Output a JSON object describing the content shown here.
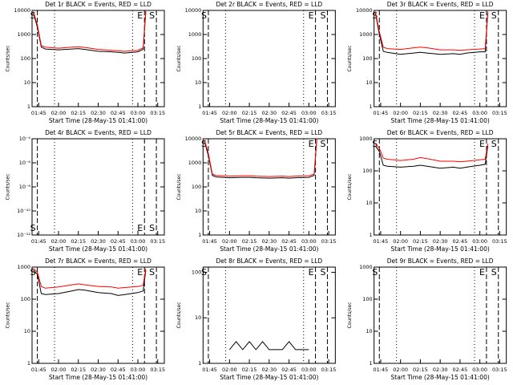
{
  "chart_data": [
    {
      "type": "line",
      "title": "Det 1r BLACK = Events, RED = LLD",
      "ylabel": "Counts/sec",
      "xlabel": "Start Time (28-May-15 01:41:00)",
      "log_y": true,
      "xlim": [
        "01:40",
        "03:20"
      ],
      "xticks": [
        "01:45",
        "02:00",
        "02:15",
        "02:30",
        "02:45",
        "03:00",
        "03:15"
      ],
      "ylim": [
        1,
        10000
      ],
      "yticks": [
        1,
        10,
        100,
        1000,
        10000
      ],
      "x": [
        "01:41",
        "01:44",
        "01:47",
        "01:50",
        "02:00",
        "02:10",
        "02:15",
        "02:20",
        "02:30",
        "02:40",
        "02:45",
        "02:50",
        "03:00",
        "03:04",
        "03:06"
      ],
      "series": [
        {
          "color": "#000000",
          "values": [
            8000,
            2000,
            300,
            250,
            230,
            250,
            260,
            240,
            200,
            190,
            180,
            170,
            190,
            240,
            9000
          ]
        },
        {
          "color": "#ff0000",
          "values": [
            9000,
            2500,
            350,
            300,
            270,
            300,
            310,
            290,
            240,
            220,
            210,
            200,
            220,
            280,
            10000
          ]
        }
      ],
      "markers": [
        {
          "x": "01:44",
          "style": "dashed",
          "label": "S"
        },
        {
          "x": "01:57",
          "style": "dotted"
        },
        {
          "x": "02:56",
          "style": "dotted"
        },
        {
          "x": "03:05",
          "style": "dashed",
          "label": "E"
        },
        {
          "x": "03:14",
          "style": "dashed",
          "label": "S"
        }
      ]
    },
    {
      "type": "line",
      "title": "Det 2r BLACK = Events, RED = LLD",
      "ylabel": "Counts/sec",
      "xlabel": "Start Time (28-May-15 01:41:00)",
      "log_y": true,
      "xlim": [
        "01:40",
        "03:20"
      ],
      "xticks": [
        "01:45",
        "02:00",
        "02:15",
        "02:30",
        "02:45",
        "03:00",
        "03:15"
      ],
      "ylim": [
        1,
        10000
      ],
      "yticks": [
        1,
        10,
        100,
        1000,
        10000
      ],
      "x": [],
      "series": [],
      "markers": [
        {
          "x": "01:44",
          "style": "dashed",
          "label": "S"
        },
        {
          "x": "01:57",
          "style": "dotted"
        },
        {
          "x": "02:56",
          "style": "dotted"
        },
        {
          "x": "03:05",
          "style": "dashed",
          "label": "E"
        },
        {
          "x": "03:14",
          "style": "dashed",
          "label": "S"
        }
      ]
    },
    {
      "type": "line",
      "title": "Det 3r BLACK = Events, RED = LLD",
      "ylabel": "Counts/sec",
      "xlabel": "Start Time (28-May-15 01:41:00)",
      "log_y": true,
      "xlim": [
        "01:40",
        "03:20"
      ],
      "xticks": [
        "01:45",
        "02:00",
        "02:15",
        "02:30",
        "02:45",
        "03:00",
        "03:15"
      ],
      "ylim": [
        1,
        10000
      ],
      "yticks": [
        1,
        10,
        100,
        1000,
        10000
      ],
      "x": [
        "01:41",
        "01:44",
        "01:47",
        "01:50",
        "02:00",
        "02:10",
        "02:15",
        "02:20",
        "02:30",
        "02:40",
        "02:45",
        "02:50",
        "03:00",
        "03:04",
        "03:06"
      ],
      "series": [
        {
          "color": "#000000",
          "values": [
            8000,
            1000,
            200,
            180,
            150,
            170,
            180,
            170,
            150,
            160,
            150,
            170,
            190,
            190,
            8000
          ]
        },
        {
          "color": "#ff0000",
          "values": [
            9000,
            1300,
            300,
            260,
            240,
            280,
            300,
            280,
            230,
            230,
            220,
            230,
            250,
            260,
            9000
          ]
        }
      ],
      "markers": [
        {
          "x": "01:44",
          "style": "dashed",
          "label": "S"
        },
        {
          "x": "01:57",
          "style": "dotted"
        },
        {
          "x": "02:56",
          "style": "dotted"
        },
        {
          "x": "03:05",
          "style": "dashed",
          "label": "E"
        },
        {
          "x": "03:14",
          "style": "dashed",
          "label": "S"
        }
      ]
    },
    {
      "type": "line",
      "title": "Det 4r BLACK = Events, RED = LLD",
      "ylabel": "Counts/sec",
      "xlabel": "Start Time (28-May-15 01:41:00)",
      "log_y": true,
      "xlim": [
        "01:40",
        "03:20"
      ],
      "xticks": [
        "01:45",
        "02:00",
        "02:15",
        "02:30",
        "02:45",
        "03:00",
        "03:15"
      ],
      "ylim": [
        1e-12,
        0.0001
      ],
      "yticks": [
        {
          "value": 1e-12,
          "label": "10⁻¹²"
        },
        {
          "value": 1e-10,
          "label": "10⁻¹⁰"
        },
        {
          "value": 1e-08,
          "label": "10⁻⁸"
        },
        {
          "value": 1e-06,
          "label": "10⁻⁶"
        },
        {
          "value": 0.0001,
          "label": "10⁻⁴"
        }
      ],
      "x": [],
      "series": [],
      "marker_labels": "bottom",
      "markers": [
        {
          "x": "01:44",
          "style": "dashed",
          "label": "S"
        },
        {
          "x": "01:57",
          "style": "dotted"
        },
        {
          "x": "02:56",
          "style": "dotted"
        },
        {
          "x": "03:05",
          "style": "dashed",
          "label": "E"
        },
        {
          "x": "03:14",
          "style": "dashed",
          "label": "S"
        }
      ]
    },
    {
      "type": "line",
      "title": "Det 5r BLACK = Events, RED = LLD",
      "ylabel": "Counts/sec",
      "xlabel": "Start Time (28-May-15 01:41:00)",
      "log_y": true,
      "xlim": [
        "01:40",
        "03:20"
      ],
      "xticks": [
        "01:45",
        "02:00",
        "02:15",
        "02:30",
        "02:45",
        "03:00",
        "03:15"
      ],
      "ylim": [
        1,
        10000
      ],
      "yticks": [
        1,
        10,
        100,
        1000,
        10000
      ],
      "x": [
        "01:41",
        "01:44",
        "01:47",
        "01:50",
        "02:00",
        "02:10",
        "02:15",
        "02:20",
        "02:30",
        "02:40",
        "02:45",
        "02:50",
        "03:00",
        "03:04",
        "03:06"
      ],
      "series": [
        {
          "color": "#000000",
          "values": [
            8000,
            2000,
            300,
            260,
            240,
            250,
            250,
            240,
            230,
            240,
            230,
            240,
            250,
            300,
            9000
          ]
        },
        {
          "color": "#ff0000",
          "values": [
            9000,
            2500,
            340,
            300,
            280,
            290,
            290,
            280,
            270,
            280,
            270,
            280,
            290,
            340,
            10000
          ]
        }
      ],
      "markers": [
        {
          "x": "01:44",
          "style": "dashed",
          "label": "S"
        },
        {
          "x": "01:57",
          "style": "dotted"
        },
        {
          "x": "02:56",
          "style": "dotted"
        },
        {
          "x": "03:05",
          "style": "dashed",
          "label": "E"
        },
        {
          "x": "03:14",
          "style": "dashed",
          "label": "S"
        }
      ]
    },
    {
      "type": "line",
      "title": "Det 6r BLACK = Events, RED = LLD",
      "ylabel": "Counts/sec",
      "xlabel": "Start Time (28-May-15 01:41:00)",
      "log_y": true,
      "xlim": [
        "01:40",
        "03:20"
      ],
      "xticks": [
        "01:45",
        "02:00",
        "02:15",
        "02:30",
        "02:45",
        "03:00",
        "03:15"
      ],
      "ylim": [
        1,
        1000
      ],
      "yticks": [
        1,
        10,
        100,
        1000
      ],
      "x": [
        "01:41",
        "01:44",
        "01:47",
        "01:50",
        "02:00",
        "02:10",
        "02:15",
        "02:20",
        "02:30",
        "02:40",
        "02:45",
        "02:50",
        "03:00",
        "03:04",
        "03:06"
      ],
      "series": [
        {
          "color": "#000000",
          "values": [
            600,
            400,
            150,
            140,
            130,
            140,
            150,
            140,
            120,
            130,
            120,
            130,
            150,
            160,
            600
          ]
        },
        {
          "color": "#ff0000",
          "values": [
            700,
            500,
            250,
            230,
            210,
            230,
            260,
            240,
            200,
            200,
            190,
            200,
            220,
            230,
            700
          ]
        }
      ],
      "markers": [
        {
          "x": "01:44",
          "style": "dashed",
          "label": "S"
        },
        {
          "x": "01:57",
          "style": "dotted"
        },
        {
          "x": "02:56",
          "style": "dotted"
        },
        {
          "x": "03:05",
          "style": "dashed",
          "label": "E"
        },
        {
          "x": "03:14",
          "style": "dashed",
          "label": "S"
        }
      ]
    },
    {
      "type": "line",
      "title": "Det 7r BLACK = Events, RED = LLD",
      "ylabel": "Counts/sec",
      "xlabel": "Start Time (28-May-15 01:41:00)",
      "log_y": true,
      "xlim": [
        "01:40",
        "03:20"
      ],
      "xticks": [
        "01:45",
        "02:00",
        "02:15",
        "02:30",
        "02:45",
        "03:00",
        "03:15"
      ],
      "ylim": [
        1,
        1000
      ],
      "yticks": [
        1,
        10,
        100,
        1000
      ],
      "x": [
        "01:41",
        "01:44",
        "01:47",
        "01:50",
        "02:00",
        "02:10",
        "02:15",
        "02:20",
        "02:30",
        "02:40",
        "02:45",
        "02:50",
        "03:00",
        "03:04",
        "03:06"
      ],
      "series": [
        {
          "color": "#000000",
          "values": [
            800,
            600,
            150,
            140,
            150,
            180,
            200,
            190,
            160,
            150,
            130,
            140,
            160,
            180,
            800
          ]
        },
        {
          "color": "#ff0000",
          "values": [
            900,
            700,
            250,
            220,
            240,
            280,
            300,
            280,
            250,
            240,
            220,
            230,
            250,
            270,
            900
          ]
        }
      ],
      "markers": [
        {
          "x": "01:44",
          "style": "dashed",
          "label": "S"
        },
        {
          "x": "01:57",
          "style": "dotted"
        },
        {
          "x": "02:56",
          "style": "dotted"
        },
        {
          "x": "03:05",
          "style": "dashed",
          "label": "E"
        },
        {
          "x": "03:14",
          "style": "dashed",
          "label": "S"
        }
      ]
    },
    {
      "type": "line",
      "title": "Det 8r BLACK = Events, RED = LLD",
      "ylabel": "Counts/sec",
      "xlabel": "Start Time (28-May-15 01:41:00)",
      "log_y": true,
      "xlim": [
        "01:40",
        "03:20"
      ],
      "xticks": [
        "01:45",
        "02:00",
        "02:15",
        "02:30",
        "02:45",
        "03:00",
        "03:15"
      ],
      "ylim": [
        1,
        130
      ],
      "yticks": [
        1,
        10,
        100
      ],
      "x": [
        "01:41",
        "01:44",
        "01:47",
        "01:50",
        "02:00",
        "02:05",
        "02:10",
        "02:15",
        "02:20",
        "02:25",
        "02:30",
        "02:40",
        "02:45",
        "02:50",
        "03:00"
      ],
      "series": [
        {
          "color": "#000000",
          "values": [
            null,
            null,
            null,
            null,
            2,
            3,
            2,
            3,
            2,
            3,
            2,
            2,
            3,
            2,
            2
          ]
        }
      ],
      "markers": [
        {
          "x": "01:44",
          "style": "dashed",
          "label": "S"
        },
        {
          "x": "01:57",
          "style": "dotted"
        },
        {
          "x": "02:56",
          "style": "dotted"
        },
        {
          "x": "03:05",
          "style": "dashed",
          "label": "E"
        },
        {
          "x": "03:14",
          "style": "dashed",
          "label": "S"
        }
      ]
    },
    {
      "type": "line",
      "title": "Det 9r BLACK = Events, RED = LLD",
      "ylabel": "Counts/sec",
      "xlabel": "Start Time (28-May-15 01:41:00)",
      "log_y": true,
      "xlim": [
        "01:40",
        "03:20"
      ],
      "xticks": [
        "01:45",
        "02:00",
        "02:15",
        "02:30",
        "02:45",
        "03:00",
        "03:15"
      ],
      "ylim": [
        1,
        1000
      ],
      "yticks": [
        1,
        10,
        100,
        1000
      ],
      "x": [],
      "series": [],
      "markers": [
        {
          "x": "01:44",
          "style": "dashed",
          "label": "S"
        },
        {
          "x": "01:57",
          "style": "dotted"
        },
        {
          "x": "02:56",
          "style": "dotted"
        },
        {
          "x": "03:05",
          "style": "dashed",
          "label": "E"
        },
        {
          "x": "03:14",
          "style": "dashed",
          "label": "S"
        }
      ]
    }
  ]
}
